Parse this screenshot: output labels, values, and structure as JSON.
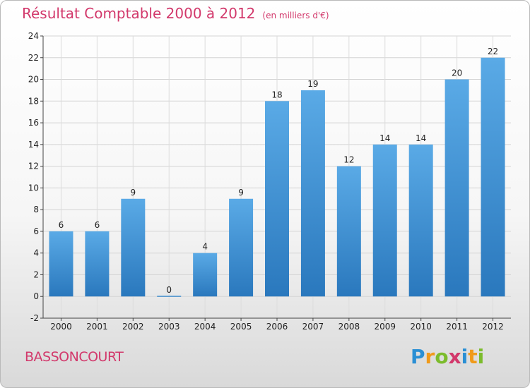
{
  "title": "Résultat Comptable 2000 à 2012",
  "title_unit": "(en milliers d'€)",
  "town": "BASSONCOURT",
  "logo": {
    "letters": [
      "P",
      "r",
      "o",
      "x",
      "i",
      "t",
      "i"
    ],
    "colors": [
      "#2a8fd4",
      "#f09a1a",
      "#7cbc2c",
      "#d2386b",
      "#2a8fd4",
      "#f09a1a",
      "#7cbc2c"
    ]
  },
  "chart_data": {
    "type": "bar",
    "title": "Résultat Comptable 2000 à 2012",
    "ylabel": "en milliers d'€",
    "xlabel": "",
    "categories": [
      "2000",
      "2001",
      "2002",
      "2003",
      "2004",
      "2005",
      "2006",
      "2007",
      "2008",
      "2009",
      "2010",
      "2011",
      "2012"
    ],
    "values": [
      6,
      6,
      9,
      0,
      4,
      9,
      18,
      19,
      12,
      14,
      14,
      20,
      22
    ],
    "ylim": [
      -2,
      24
    ],
    "yticks": [
      -2,
      0,
      2,
      4,
      6,
      8,
      10,
      12,
      14,
      16,
      18,
      20,
      22,
      24
    ],
    "grid": true,
    "bar_color": "#3d8fd2"
  }
}
